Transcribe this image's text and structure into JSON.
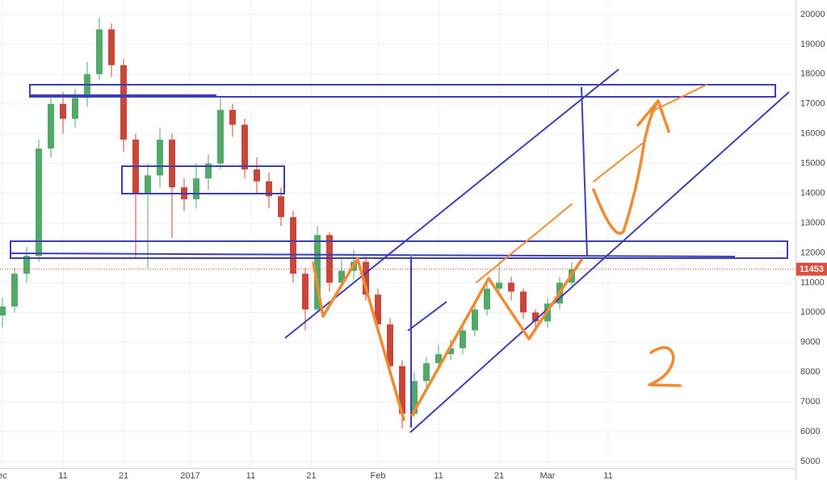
{
  "chart_data": {
    "type": "candlestick",
    "x": [
      1,
      3,
      5,
      7,
      9,
      11,
      13,
      15,
      17,
      19,
      21,
      23,
      25,
      27,
      29,
      31,
      33,
      35,
      37,
      39,
      41,
      43,
      45,
      47,
      49,
      51,
      53,
      55,
      57,
      59,
      61,
      63,
      65,
      67,
      69,
      71,
      73,
      75,
      77,
      79,
      81,
      83,
      85,
      87,
      89,
      91,
      93,
      95
    ],
    "open": [
      9900,
      10200,
      11300,
      11900,
      15500,
      17000,
      16500,
      17200,
      18000,
      19500,
      18300,
      15800,
      14000,
      14600,
      15800,
      14200,
      13800,
      14500,
      15000,
      16800,
      16300,
      14800,
      14400,
      13900,
      13200,
      11300,
      10100,
      12600,
      11000,
      11400,
      11700,
      10600,
      9600,
      8200,
      6600,
      7700,
      8300,
      8600,
      8800,
      9400,
      10100,
      10800,
      11000,
      10700,
      10000,
      9700,
      10300,
      11000
    ],
    "high": [
      10500,
      11500,
      12200,
      15800,
      17300,
      17400,
      17500,
      18400,
      19900,
      19700,
      18500,
      16000,
      15000,
      16200,
      16000,
      14500,
      15000,
      15300,
      17200,
      17000,
      16500,
      15200,
      14700,
      14200,
      13400,
      11500,
      12900,
      12700,
      11800,
      12100,
      11900,
      10800,
      9800,
      8400,
      8000,
      8500,
      8900,
      9100,
      9600,
      10300,
      11000,
      11700,
      11200,
      10800,
      10100,
      10500,
      11200,
      11700
    ],
    "low": [
      9500,
      10000,
      11000,
      11700,
      15200,
      16000,
      16200,
      16900,
      17800,
      17900,
      15400,
      11800,
      11500,
      14200,
      12500,
      13400,
      13500,
      14100,
      14800,
      15900,
      14500,
      14000,
      13500,
      12900,
      11000,
      9400,
      10000,
      10700,
      10800,
      11100,
      10400,
      9300,
      8000,
      6100,
      6500,
      7500,
      8100,
      8400,
      8600,
      9200,
      9900,
      10600,
      10400,
      9800,
      9400,
      9500,
      10100,
      10900
    ],
    "close": [
      10200,
      11300,
      11900,
      15500,
      17000,
      16500,
      17200,
      18000,
      19500,
      18300,
      15800,
      14000,
      14600,
      15800,
      14200,
      13800,
      14500,
      15000,
      16800,
      16300,
      14800,
      14400,
      13900,
      13200,
      11300,
      10100,
      12600,
      11000,
      11400,
      11700,
      10600,
      9600,
      8200,
      6600,
      7700,
      8300,
      8600,
      8800,
      9400,
      10100,
      10800,
      11000,
      10700,
      10000,
      9700,
      10300,
      11000,
      11453
    ],
    "up_color": "#53a96a",
    "down_color": "#c9473a",
    "xlim": [
      0,
      132
    ],
    "xticks": [
      {
        "value": 1,
        "label": "ec"
      },
      11,
      21,
      {
        "value": 32,
        "label": "2017"
      },
      {
        "value": 42,
        "label": "11"
      },
      {
        "value": 52,
        "label": "21"
      },
      {
        "value": 63,
        "label": "Feb"
      },
      {
        "value": 73,
        "label": "11"
      },
      {
        "value": 83,
        "label": "21"
      },
      {
        "value": 91,
        "label": "Mar"
      },
      {
        "value": 101,
        "label": "11"
      }
    ],
    "ylim": [
      4800,
      20500
    ],
    "yticks": [
      5000,
      6000,
      7000,
      8000,
      9000,
      10000,
      11000,
      12000,
      13000,
      14000,
      15000,
      16000,
      17000,
      18000,
      19000,
      20000
    ],
    "grid": true,
    "last_price": 11453,
    "last_price_color": "#e04e3c"
  }
}
